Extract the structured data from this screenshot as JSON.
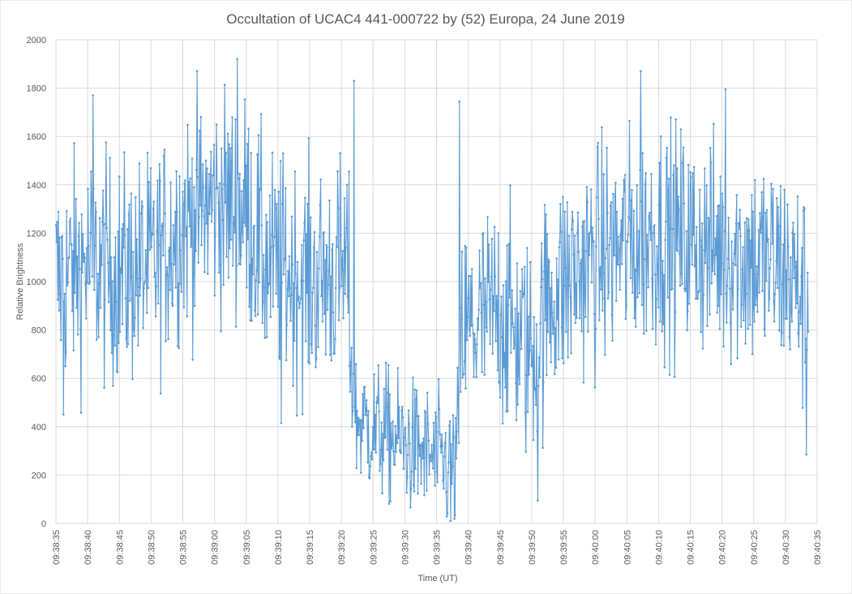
{
  "chart_data": {
    "type": "line",
    "title": "Occultation of UCAC4 441-000722 by (52) Europa, 24 June 2019",
    "xlabel": "Time (UT)",
    "ylabel": "Relative Brightness",
    "ylim": [
      0,
      2000
    ],
    "yticks": [
      "0",
      "200",
      "400",
      "600",
      "800",
      "1000",
      "1200",
      "1400",
      "1600",
      "1800",
      "2000"
    ],
    "xticks": [
      "09:38:35",
      "09:38:40",
      "09:38:45",
      "09:38:50",
      "09:38:55",
      "09:39:00",
      "09:39:05",
      "09:39:10",
      "09:39:15",
      "09:39:20",
      "09:39:25",
      "09:39:30",
      "09:39:35",
      "09:39:40",
      "09:39:45",
      "09:39:50",
      "09:39:55",
      "09:40:00",
      "09:40:05",
      "09:40:10",
      "09:40:15",
      "09:40:20",
      "09:40:25",
      "09:40:30",
      "09:40:35"
    ],
    "xlim": [
      "09:38:35",
      "09:40:35"
    ],
    "grid": true,
    "legend": "none",
    "series_color": "#5b9bd5",
    "x_start": "09:38:35",
    "x_end": "09:40:33.6",
    "samples": 1200,
    "mean_profile": [
      {
        "t": "09:38:35",
        "y": 1000
      },
      {
        "t": "09:38:40",
        "y": 1080
      },
      {
        "t": "09:38:45",
        "y": 1030
      },
      {
        "t": "09:38:50",
        "y": 1060
      },
      {
        "t": "09:38:55",
        "y": 1250
      },
      {
        "t": "09:39:00",
        "y": 1330
      },
      {
        "t": "09:39:05",
        "y": 1300
      },
      {
        "t": "09:39:08",
        "y": 1080
      },
      {
        "t": "09:39:15",
        "y": 1000
      },
      {
        "t": "09:39:21",
        "y": 1050
      },
      {
        "t": "09:39:22",
        "y": 430
      },
      {
        "t": "09:39:30",
        "y": 330
      },
      {
        "t": "09:39:38",
        "y": 220
      },
      {
        "t": "09:39:39",
        "y": 780
      },
      {
        "t": "09:39:45",
        "y": 880
      },
      {
        "t": "09:39:50",
        "y": 700
      },
      {
        "t": "09:39:53",
        "y": 950
      },
      {
        "t": "09:40:00",
        "y": 1100
      },
      {
        "t": "09:40:10",
        "y": 1200
      },
      {
        "t": "09:40:20",
        "y": 1130
      },
      {
        "t": "09:40:30",
        "y": 1050
      },
      {
        "t": "09:40:33.6",
        "y": 900
      }
    ],
    "spread": 230,
    "peaks": [
      {
        "t": "09:38:40.8",
        "y": 1770
      },
      {
        "t": "09:38:57.3",
        "y": 1870
      },
      {
        "t": "09:39:03.6",
        "y": 1920
      },
      {
        "t": "09:39:22.0",
        "y": 1830
      },
      {
        "t": "09:39:38.6",
        "y": 1745
      },
      {
        "t": "09:40:07.2",
        "y": 1870
      },
      {
        "t": "09:40:20.5",
        "y": 1795
      }
    ],
    "troughs": [
      {
        "t": "09:38:36.2",
        "y": 450
      },
      {
        "t": "09:39:10.5",
        "y": 415
      },
      {
        "t": "09:39:37.2",
        "y": 10
      },
      {
        "t": "09:39:51.0",
        "y": 95
      },
      {
        "t": "09:40:33.3",
        "y": 285
      }
    ]
  }
}
